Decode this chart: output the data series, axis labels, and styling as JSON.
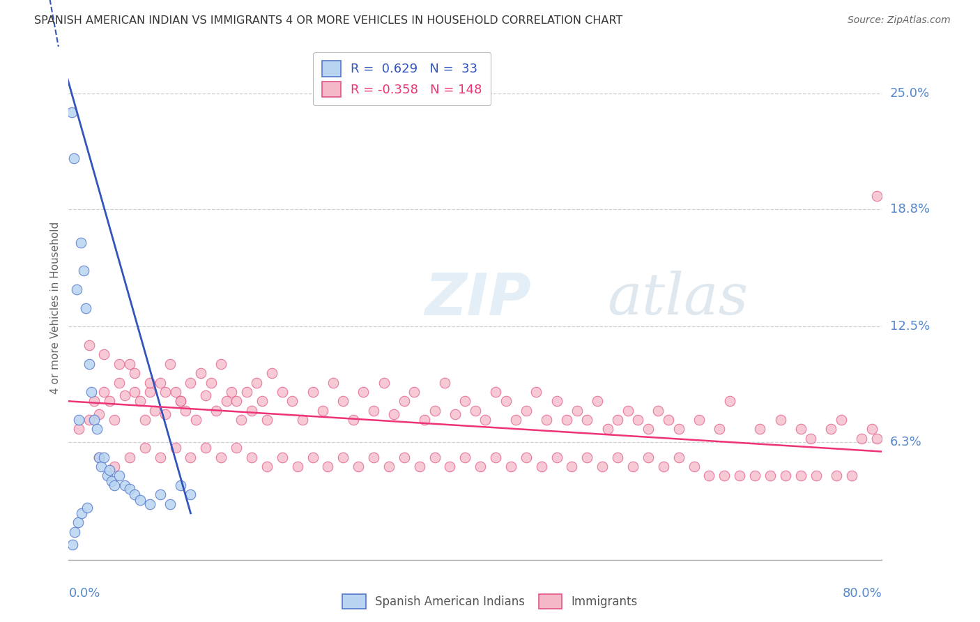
{
  "title": "SPANISH AMERICAN INDIAN VS IMMIGRANTS 4 OR MORE VEHICLES IN HOUSEHOLD CORRELATION CHART",
  "source": "Source: ZipAtlas.com",
  "ylabel": "4 or more Vehicles in Household",
  "ytick_labels": [
    "6.3%",
    "12.5%",
    "18.8%",
    "25.0%"
  ],
  "ytick_values": [
    6.3,
    12.5,
    18.8,
    25.0
  ],
  "xmin": 0.0,
  "xmax": 80.0,
  "ymin": 0.0,
  "ymax": 27.0,
  "blue_R": 0.629,
  "blue_N": 33,
  "pink_R": -0.358,
  "pink_N": 148,
  "blue_color": "#b8d4f0",
  "pink_color": "#f5b8c8",
  "blue_edge_color": "#5577cc",
  "pink_edge_color": "#e05585",
  "blue_line_color": "#3355bb",
  "pink_line_color": "#ee3377",
  "legend_blue_label": "Spanish American Indians",
  "legend_pink_label": "Immigrants",
  "title_color": "#333333",
  "source_color": "#666666",
  "axis_label_color": "#5588cc",
  "blue_scatter_x": [
    0.3,
    0.5,
    0.8,
    1.0,
    1.2,
    1.5,
    1.7,
    2.0,
    2.2,
    2.5,
    2.8,
    3.0,
    3.2,
    3.5,
    3.8,
    4.0,
    4.2,
    4.5,
    5.0,
    5.5,
    6.0,
    6.5,
    7.0,
    8.0,
    9.0,
    10.0,
    11.0,
    12.0,
    0.4,
    0.6,
    0.9,
    1.3,
    1.8
  ],
  "blue_scatter_y": [
    24.0,
    21.5,
    14.5,
    7.5,
    17.0,
    15.5,
    13.5,
    10.5,
    9.0,
    7.5,
    7.0,
    5.5,
    5.0,
    5.5,
    4.5,
    4.8,
    4.2,
    4.0,
    4.5,
    4.0,
    3.8,
    3.5,
    3.2,
    3.0,
    3.5,
    3.0,
    4.0,
    3.5,
    0.8,
    1.5,
    2.0,
    2.5,
    2.8
  ],
  "pink_scatter_x": [
    1.0,
    2.0,
    2.5,
    3.0,
    3.5,
    4.0,
    4.5,
    5.0,
    5.5,
    6.0,
    6.5,
    7.0,
    7.5,
    8.0,
    8.5,
    9.0,
    9.5,
    10.0,
    10.5,
    11.0,
    11.5,
    12.0,
    12.5,
    13.0,
    13.5,
    14.0,
    14.5,
    15.0,
    15.5,
    16.0,
    16.5,
    17.0,
    17.5,
    18.0,
    18.5,
    19.0,
    19.5,
    20.0,
    21.0,
    22.0,
    23.0,
    24.0,
    25.0,
    26.0,
    27.0,
    28.0,
    29.0,
    30.0,
    31.0,
    32.0,
    33.0,
    34.0,
    35.0,
    36.0,
    37.0,
    38.0,
    39.0,
    40.0,
    41.0,
    42.0,
    43.0,
    44.0,
    45.0,
    46.0,
    47.0,
    48.0,
    49.0,
    50.0,
    51.0,
    52.0,
    53.0,
    54.0,
    55.0,
    56.0,
    57.0,
    58.0,
    59.0,
    60.0,
    62.0,
    64.0,
    65.0,
    68.0,
    70.0,
    72.0,
    73.0,
    75.0,
    76.0,
    78.0,
    79.0,
    3.0,
    4.5,
    6.0,
    7.5,
    9.0,
    10.5,
    12.0,
    13.5,
    15.0,
    16.5,
    18.0,
    19.5,
    21.0,
    22.5,
    24.0,
    25.5,
    27.0,
    28.5,
    30.0,
    31.5,
    33.0,
    34.5,
    36.0,
    37.5,
    39.0,
    40.5,
    42.0,
    43.5,
    45.0,
    46.5,
    48.0,
    49.5,
    51.0,
    52.5,
    54.0,
    55.5,
    57.0,
    58.5,
    60.0,
    61.5,
    63.0,
    64.5,
    66.0,
    67.5,
    69.0,
    70.5,
    72.0,
    73.5,
    75.5,
    77.0,
    79.5,
    2.0,
    3.5,
    5.0,
    6.5,
    8.0,
    9.5,
    11.0,
    79.5
  ],
  "pink_scatter_y": [
    7.0,
    7.5,
    8.5,
    7.8,
    9.0,
    8.5,
    7.5,
    9.5,
    8.8,
    10.5,
    9.0,
    8.5,
    7.5,
    9.0,
    8.0,
    9.5,
    7.8,
    10.5,
    9.0,
    8.5,
    8.0,
    9.5,
    7.5,
    10.0,
    8.8,
    9.5,
    8.0,
    10.5,
    8.5,
    9.0,
    8.5,
    7.5,
    9.0,
    8.0,
    9.5,
    8.5,
    7.5,
    10.0,
    9.0,
    8.5,
    7.5,
    9.0,
    8.0,
    9.5,
    8.5,
    7.5,
    9.0,
    8.0,
    9.5,
    7.8,
    8.5,
    9.0,
    7.5,
    8.0,
    9.5,
    7.8,
    8.5,
    8.0,
    7.5,
    9.0,
    8.5,
    7.5,
    8.0,
    9.0,
    7.5,
    8.5,
    7.5,
    8.0,
    7.5,
    8.5,
    7.0,
    7.5,
    8.0,
    7.5,
    7.0,
    8.0,
    7.5,
    7.0,
    7.5,
    7.0,
    8.5,
    7.0,
    7.5,
    7.0,
    6.5,
    7.0,
    7.5,
    6.5,
    7.0,
    5.5,
    5.0,
    5.5,
    6.0,
    5.5,
    6.0,
    5.5,
    6.0,
    5.5,
    6.0,
    5.5,
    5.0,
    5.5,
    5.0,
    5.5,
    5.0,
    5.5,
    5.0,
    5.5,
    5.0,
    5.5,
    5.0,
    5.5,
    5.0,
    5.5,
    5.0,
    5.5,
    5.0,
    5.5,
    5.0,
    5.5,
    5.0,
    5.5,
    5.0,
    5.5,
    5.0,
    5.5,
    5.0,
    5.5,
    5.0,
    4.5,
    4.5,
    4.5,
    4.5,
    4.5,
    4.5,
    4.5,
    4.5,
    4.5,
    4.5,
    6.5,
    11.5,
    11.0,
    10.5,
    10.0,
    9.5,
    9.0,
    8.5,
    19.5
  ],
  "blue_line_start_x": -1.0,
  "blue_line_start_y": 27.5,
  "blue_line_end_x": 12.0,
  "blue_line_end_y": 2.5,
  "pink_line_start_x": 0.0,
  "pink_line_start_y": 8.5,
  "pink_line_end_x": 80.0,
  "pink_line_end_y": 5.8
}
